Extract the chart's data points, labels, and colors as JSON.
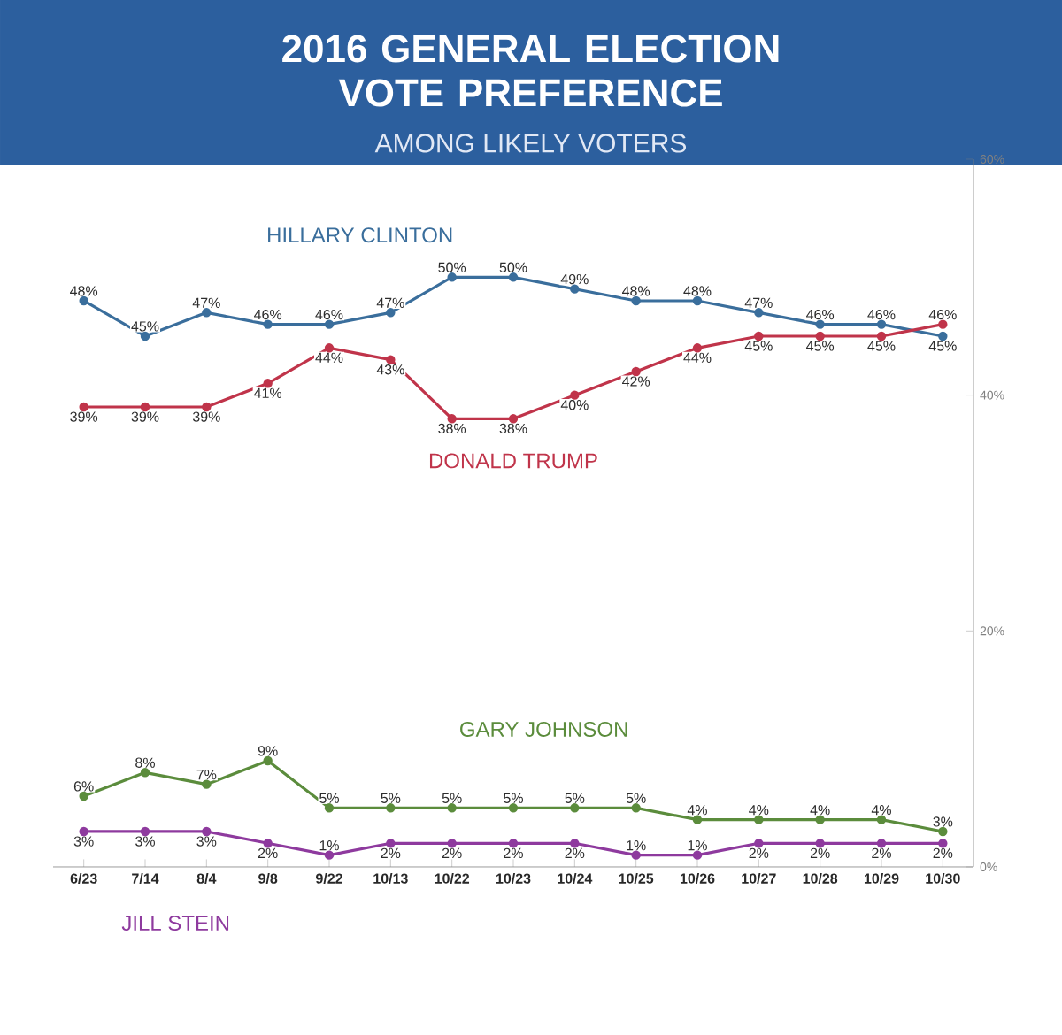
{
  "chart_data": {
    "type": "line",
    "title": "2016 GENERAL ELECTION VOTE PREFERENCE",
    "subtitle": "AMONG LIKELY VOTERS",
    "categories": [
      "6/23",
      "7/14",
      "8/4",
      "9/8",
      "9/22",
      "10/13",
      "10/22",
      "10/23",
      "10/24",
      "10/25",
      "10/26",
      "10/27",
      "10/28",
      "10/29",
      "10/30"
    ],
    "series": [
      {
        "name": "HILLARY CLINTON",
        "color": "#3a6e9c",
        "values": [
          48,
          45,
          47,
          46,
          46,
          47,
          50,
          50,
          49,
          48,
          48,
          47,
          46,
          46,
          45
        ],
        "value_labels": [
          "48%",
          "45%",
          "47%",
          "46%",
          "46%",
          "47%",
          "50%",
          "50%",
          "49%",
          "48%",
          "48%",
          "47%",
          "46%",
          "46%",
          "45%"
        ]
      },
      {
        "name": "DONALD TRUMP",
        "color": "#c0344a",
        "values": [
          39,
          39,
          39,
          41,
          44,
          43,
          38,
          38,
          40,
          42,
          44,
          45,
          45,
          45,
          46
        ],
        "value_labels": [
          "39%",
          "39%",
          "39%",
          "41%",
          "44%",
          "43%",
          "38%",
          "38%",
          "40%",
          "42%",
          "44%",
          "45%",
          "45%",
          "45%",
          "46%"
        ]
      },
      {
        "name": "GARY JOHNSON",
        "color": "#5b8c3c",
        "values": [
          6,
          8,
          7,
          9,
          5,
          5,
          5,
          5,
          5,
          5,
          4,
          4,
          4,
          4,
          3
        ],
        "value_labels": [
          "6%",
          "8%",
          "7%",
          "9%",
          "5%",
          "5%",
          "5%",
          "5%",
          "5%",
          "5%",
          "4%",
          "4%",
          "4%",
          "4%",
          "3%"
        ]
      },
      {
        "name": "JILL STEIN",
        "color": "#8e3a9e",
        "values": [
          3,
          3,
          3,
          2,
          1,
          2,
          2,
          2,
          2,
          1,
          1,
          2,
          2,
          2,
          2
        ],
        "value_labels": [
          "3%",
          "3%",
          "3%",
          "2%",
          "1%",
          "2%",
          "2%",
          "2%",
          "2%",
          "1%",
          "1%",
          "2%",
          "2%",
          "2%",
          "2%"
        ]
      }
    ],
    "ylim": [
      0,
      60
    ],
    "yticks": [
      {
        "value": 0,
        "label": "0%"
      },
      {
        "value": 20,
        "label": "20%"
      },
      {
        "value": 40,
        "label": "40%"
      },
      {
        "value": 60,
        "label": "60%"
      }
    ],
    "marker": "circle"
  }
}
